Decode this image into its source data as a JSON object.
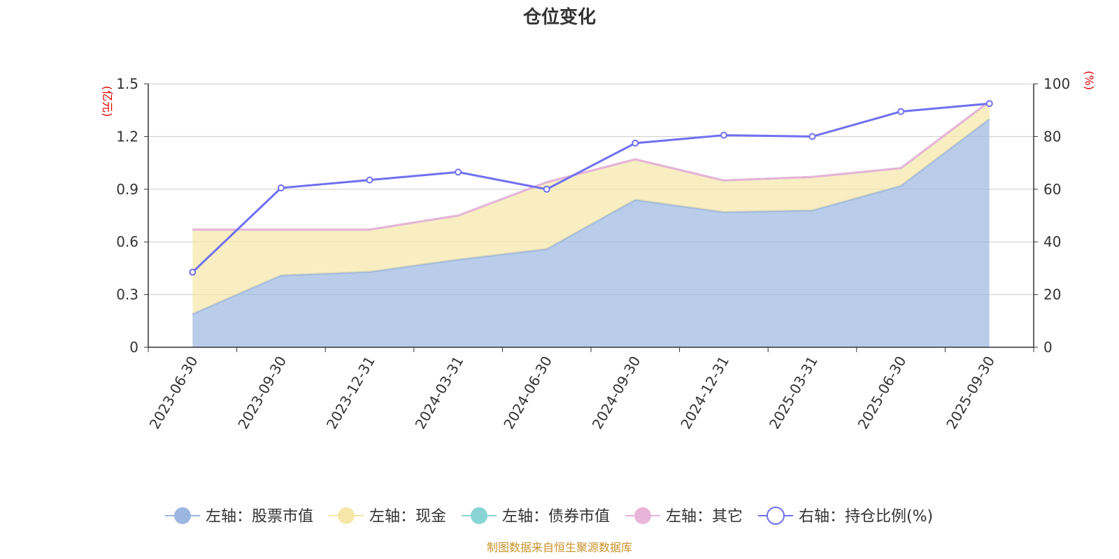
{
  "title": "仓位变化",
  "footer": "制图数据来自恒生聚源数据库",
  "chart_data": {
    "type": "area",
    "categories": [
      "2023-06-30",
      "2023-09-30",
      "2023-12-31",
      "2024-03-31",
      "2024-06-30",
      "2024-09-30",
      "2024-12-31",
      "2025-03-31",
      "2025-06-30",
      "2025-09-30"
    ],
    "left_axis": {
      "unit": "(亿元)",
      "ylim": [
        0,
        1.5
      ],
      "ticks": [
        "0",
        "0.3",
        "0.6",
        "0.9",
        "1.2",
        "1.5"
      ]
    },
    "right_axis": {
      "unit": "(%)",
      "ylim": [
        0,
        100
      ],
      "ticks": [
        "0",
        "20",
        "40",
        "60",
        "80",
        "100"
      ]
    },
    "grid": true,
    "legend_position": "bottom",
    "series": [
      {
        "name": "左轴：股票市值",
        "axis": "left",
        "kind": "area",
        "color": "#9bb6e0",
        "values": [
          0.19,
          0.41,
          0.43,
          0.5,
          0.56,
          0.84,
          0.77,
          0.78,
          0.92,
          1.3
        ]
      },
      {
        "name": "左轴：现金",
        "axis": "left",
        "kind": "area",
        "color": "#f6e7a8",
        "values": [
          0.48,
          0.26,
          0.24,
          0.25,
          0.38,
          0.23,
          0.18,
          0.19,
          0.1,
          0.1
        ]
      },
      {
        "name": "左轴：债券市值",
        "axis": "left",
        "kind": "area",
        "color": "#88d4d4",
        "values": [
          0,
          0,
          0,
          0,
          0,
          0,
          0,
          0,
          0,
          0
        ]
      },
      {
        "name": "左轴：其它",
        "axis": "left",
        "kind": "area",
        "color": "#e8b4d8",
        "values": [
          0,
          0,
          0,
          0,
          0,
          0,
          0,
          0,
          0,
          0
        ]
      },
      {
        "name": "右轴：持仓比例(%)",
        "axis": "right",
        "kind": "line",
        "color": "#7070f0",
        "values": [
          28.5,
          60.5,
          63.5,
          66.5,
          60,
          77.5,
          80.5,
          80,
          89.5,
          92.5
        ]
      }
    ]
  }
}
